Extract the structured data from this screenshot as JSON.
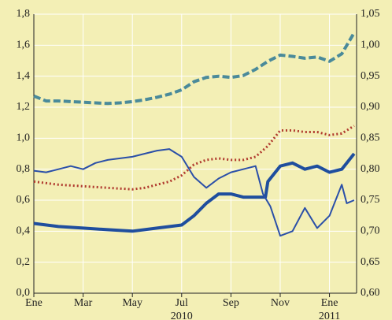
{
  "chart_data": {
    "type": "line",
    "xlim": [
      0,
      13.1
    ],
    "xticks": [
      {
        "value": 0,
        "label": "Ene"
      },
      {
        "value": 2,
        "label": "Mar"
      },
      {
        "value": 4,
        "label": "May"
      },
      {
        "value": 6,
        "label": "Jul"
      },
      {
        "value": 8,
        "label": "Sep"
      },
      {
        "value": 10,
        "label": "Nov"
      },
      {
        "value": 12,
        "label": "Ene"
      }
    ],
    "annotations": [
      {
        "x": 6,
        "text": "2010"
      },
      {
        "x": 12,
        "text": "2011"
      }
    ],
    "ylim": [
      0,
      1.8
    ],
    "yticks": [
      {
        "value": 0,
        "label": "0,0"
      },
      {
        "value": 0.2,
        "label": "0,2"
      },
      {
        "value": 0.4,
        "label": "0,4"
      },
      {
        "value": 0.6,
        "label": "0,6"
      },
      {
        "value": 0.8,
        "label": "0,8"
      },
      {
        "value": 1.0,
        "label": "1,0"
      },
      {
        "value": 1.2,
        "label": "1,2"
      },
      {
        "value": 1.4,
        "label": "1,4"
      },
      {
        "value": 1.6,
        "label": "1,6"
      },
      {
        "value": 1.8,
        "label": "1,8"
      }
    ],
    "y2lim": [
      0.6,
      1.05
    ],
    "y2ticks": [
      {
        "value": 0.6,
        "label": "0,60"
      },
      {
        "value": 0.65,
        "label": "0,65"
      },
      {
        "value": 0.7,
        "label": "0,70"
      },
      {
        "value": 0.75,
        "label": "0,75"
      },
      {
        "value": 0.8,
        "label": "0,80"
      },
      {
        "value": 0.85,
        "label": "0,85"
      },
      {
        "value": 0.9,
        "label": "0,90"
      },
      {
        "value": 0.95,
        "label": "0,95"
      },
      {
        "value": 1.0,
        "label": "1,00"
      },
      {
        "value": 1.05,
        "label": "1,05"
      }
    ],
    "grid": true,
    "series": [
      {
        "color": "#4a8a9a",
        "style": "dashed",
        "axis": "y2",
        "x": [
          0,
          0.5,
          1,
          1.5,
          2,
          2.5,
          3,
          3.5,
          4,
          4.5,
          5,
          5.5,
          6,
          6.5,
          7,
          7.5,
          8,
          8.5,
          9,
          9.5,
          10,
          10.5,
          11,
          11.5,
          12,
          12.5,
          13
        ],
        "values": [
          0.918,
          0.91,
          0.91,
          0.909,
          0.908,
          0.907,
          0.906,
          0.907,
          0.909,
          0.912,
          0.916,
          0.921,
          0.928,
          0.941,
          0.948,
          0.95,
          0.948,
          0.951,
          0.961,
          0.974,
          0.984,
          0.982,
          0.979,
          0.981,
          0.974,
          0.986,
          1.02
        ]
      },
      {
        "color": "#b03a2e",
        "style": "dotted",
        "x": [
          0,
          1,
          2,
          3,
          4,
          4.5,
          5,
          5.5,
          6,
          6.5,
          7,
          7.5,
          8,
          8.5,
          9,
          9.5,
          10,
          10.5,
          11,
          11.5,
          12,
          12.5,
          13
        ],
        "values": [
          0.72,
          0.7,
          0.69,
          0.68,
          0.67,
          0.68,
          0.7,
          0.72,
          0.76,
          0.83,
          0.86,
          0.87,
          0.86,
          0.86,
          0.88,
          0.95,
          1.05,
          1.05,
          1.04,
          1.04,
          1.02,
          1.03,
          1.08
        ]
      },
      {
        "color": "#1f4e9e",
        "style": "thick",
        "x": [
          0,
          1,
          2,
          3,
          4,
          5,
          6,
          6.5,
          7,
          7.5,
          8,
          8.5,
          9,
          9.4,
          9.5,
          10,
          10.5,
          11,
          11.5,
          12,
          12.5,
          13
        ],
        "values": [
          0.45,
          0.43,
          0.42,
          0.41,
          0.4,
          0.42,
          0.44,
          0.5,
          0.58,
          0.64,
          0.64,
          0.62,
          0.62,
          0.62,
          0.72,
          0.82,
          0.84,
          0.8,
          0.82,
          0.78,
          0.8,
          0.9
        ]
      },
      {
        "color": "#2a4fa8",
        "style": "thin",
        "x": [
          0,
          0.5,
          1,
          1.5,
          2,
          2.5,
          3,
          3.5,
          4,
          4.5,
          5,
          5.5,
          6,
          6.5,
          7,
          7.5,
          8,
          8.5,
          9,
          9.3,
          9.6,
          10,
          10.5,
          11,
          11.5,
          12,
          12.5,
          12.7,
          13
        ],
        "values": [
          0.79,
          0.78,
          0.8,
          0.82,
          0.8,
          0.84,
          0.86,
          0.87,
          0.88,
          0.9,
          0.92,
          0.93,
          0.88,
          0.75,
          0.68,
          0.74,
          0.78,
          0.8,
          0.82,
          0.64,
          0.56,
          0.37,
          0.4,
          0.55,
          0.42,
          0.5,
          0.7,
          0.58,
          0.6
        ]
      }
    ]
  }
}
